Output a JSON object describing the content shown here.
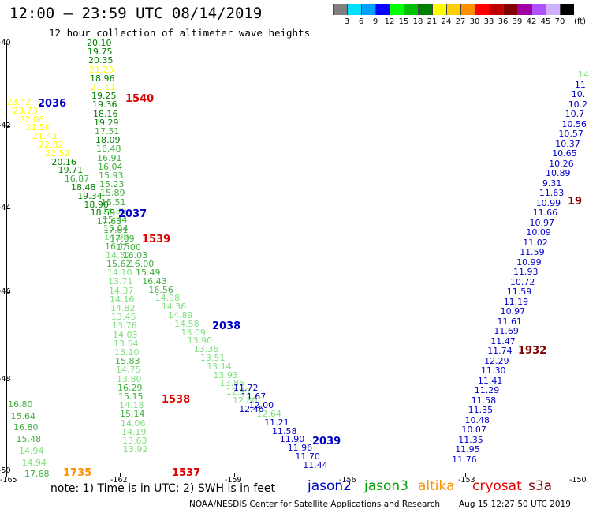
{
  "header": {
    "title": "12:00 — 23:59 UTC 08/14/2019",
    "subtitle": "12 hour collection of altimeter wave heights"
  },
  "legend": {
    "colors": [
      "#808080",
      "#00e0ff",
      "#00a0ff",
      "#0000ff",
      "#00ff00",
      "#00c000",
      "#008000",
      "#ffff00",
      "#ffd000",
      "#ff9000",
      "#ff0000",
      "#c00000",
      "#800000",
      "#a000a0",
      "#b050ff",
      "#d0b0ff",
      "#000000"
    ],
    "labels": [
      "3",
      "6",
      "9",
      "12",
      "15",
      "18",
      "21",
      "24",
      "27",
      "30",
      "33",
      "36",
      "39",
      "42",
      "45",
      "70"
    ],
    "unit": "(ft)"
  },
  "axes": {
    "y_labels": [
      "-40",
      "-42",
      "-44",
      "-46",
      "-48",
      "-50"
    ],
    "x_labels": [
      "-165",
      "-162",
      "-159",
      "-156",
      "-153",
      "-150"
    ]
  },
  "passes": [
    {
      "label": "2036",
      "color": "#0000c8"
    },
    {
      "label": "1540",
      "color": "#e00000"
    },
    {
      "label": "2037",
      "color": "#0000c8"
    },
    {
      "label": "1539",
      "color": "#e00000"
    },
    {
      "label": "2038",
      "color": "#0000c8"
    },
    {
      "label": "1538",
      "color": "#e00000"
    },
    {
      "label": "1537",
      "color": "#e00000"
    },
    {
      "label": "2039",
      "color": "#0000c8"
    },
    {
      "label": "1735",
      "color": "#ff9000"
    },
    {
      "label": "1932",
      "color": "#800000"
    },
    {
      "label": "19",
      "color": "#800000"
    }
  ],
  "tracks": {
    "t1": [
      "20.10",
      "19.75",
      "20.35",
      "21.25",
      "18.96",
      "21.11",
      "19.25",
      "19.36",
      "18.16",
      "19.29",
      "17.51",
      "18.09",
      "16.48",
      "16.91",
      "16.04",
      "15.93",
      "15.23",
      "15.89",
      "15.51",
      "14.80",
      "15.44",
      "15.04",
      "14.99",
      "16.15",
      "14.32",
      "15.62",
      "14.10",
      "13.71",
      "14.37",
      "14.16",
      "14.82",
      "13.45",
      "13.76",
      "14.03",
      "13.54",
      "13.10",
      "15.83",
      "14.75",
      "13.80",
      "16.29",
      "15.15",
      "14.18",
      "15.14",
      "14.06",
      "14.19",
      "13.63",
      "13.92"
    ],
    "t2": [
      "23.42",
      "23.73",
      "22.06",
      "21.50",
      "21.43",
      "22.82",
      "22.52",
      "20.16",
      "19.71",
      "16.87",
      "18.48",
      "19.34",
      "18.90",
      "18.59",
      "17.63",
      "17.81",
      "17.09",
      "17.00",
      "16.03",
      "16.00",
      "15.49",
      "16.43",
      "16.56",
      "14.98",
      "14.36",
      "14.89",
      "14.58",
      "13.09",
      "13.90",
      "13.36",
      "13.51",
      "13.14",
      "13.93",
      "13.85",
      "12.91",
      "12.80",
      "12.46"
    ],
    "t3": [
      "11.72",
      "11.67",
      "12.00",
      "12.64",
      "11.21",
      "11.58",
      "11.90",
      "11.96",
      "11.70",
      "11.44"
    ],
    "t4": [
      "16.80",
      "15.64",
      "16.80",
      "15.48",
      "14.94",
      "14.94",
      "17.68"
    ],
    "t5": [
      "14",
      "11",
      "10.",
      "10.2",
      "10.7",
      "10.56",
      "10.57",
      "10.37",
      "10.65",
      "10.26",
      "10.89",
      "9.31",
      "11.63",
      "10.99",
      "11.66",
      "10.97",
      "10.09",
      "11.02",
      "11.59",
      "10.99",
      "11.93",
      "10.72",
      "11.59",
      "11.19",
      "10.97",
      "11.61",
      "11.69",
      "11.47",
      "11.74",
      "12.29",
      "11.30",
      "11.41",
      "11.29",
      "11.58",
      "11.35",
      "10.48",
      "10.07",
      "11.35",
      "11.95",
      "11.76"
    ]
  },
  "footer": {
    "note": "note:  1) Time is in UTC;  2) SWH is in feet",
    "missions": [
      {
        "name": "jason2",
        "color": "#0000c8"
      },
      {
        "name": "jason3",
        "color": "#00a000"
      },
      {
        "name": "altika",
        "color": "#ff9000"
      },
      {
        "name": "cryosat",
        "color": "#e00000"
      },
      {
        "name": "s3a",
        "color": "#800000"
      }
    ],
    "credit": "NOAA/NESDIS Center for Satellite Applications and Research",
    "timestamp": "Aug 15 12:27:50 UTC 2019"
  }
}
